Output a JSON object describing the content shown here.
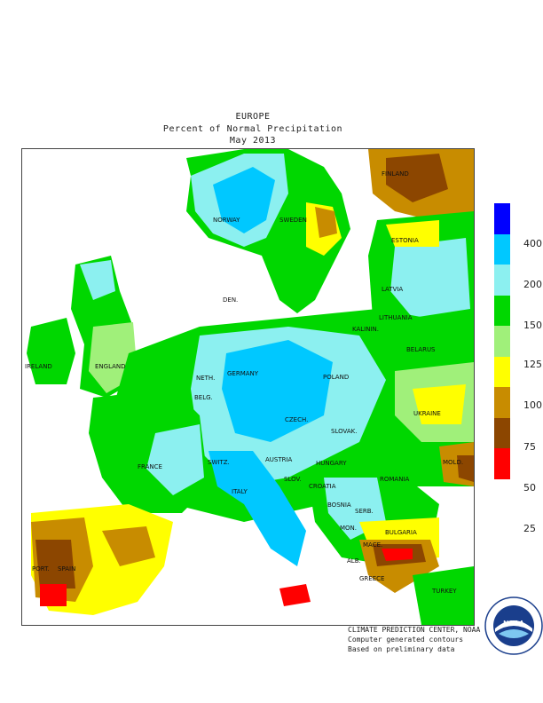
{
  "title": {
    "line1": "EUROPE",
    "line2": "Percent of Normal Precipitation",
    "line3": "May 2013"
  },
  "map": {
    "country_labels": [
      "NORWAY",
      "SWEDEN",
      "FINLAND",
      "ESTONIA",
      "LATVIA",
      "LITHUANIA",
      "KALININ.",
      "BELARUS",
      "IRELAND",
      "ENGLAND",
      "DEN.",
      "NETH.",
      "BELG.",
      "GERMANY",
      "POLAND",
      "CZECH.",
      "SLOVAK.",
      "UKRAINE",
      "FRANCE",
      "SWITZ.",
      "AUSTRIA",
      "HUNGARY",
      "MOLD.",
      "ROMANIA",
      "SLOV.",
      "CROATIA",
      "ITALY",
      "BOSNIA",
      "SERB.",
      "MON.",
      "BULGARIA",
      "MACE.",
      "ALB.",
      "PORT.",
      "SPAIN",
      "GREECE",
      "TURKEY"
    ]
  },
  "legend": {
    "levels": [
      "400",
      "200",
      "150",
      "125",
      "100",
      "75",
      "50",
      "25"
    ],
    "colors": [
      "#0000ff",
      "#00c8ff",
      "#8cf0f0",
      "#00d700",
      "#a0f07a",
      "#ffff00",
      "#c88c00",
      "#8c4600",
      "#ff0000"
    ]
  },
  "credits": {
    "line1": "CLIMATE PREDICTION CENTER, NOAA",
    "line2": "Computer generated contours",
    "line3": "Based on preliminary data"
  },
  "logo": {
    "text": "NOAA"
  }
}
